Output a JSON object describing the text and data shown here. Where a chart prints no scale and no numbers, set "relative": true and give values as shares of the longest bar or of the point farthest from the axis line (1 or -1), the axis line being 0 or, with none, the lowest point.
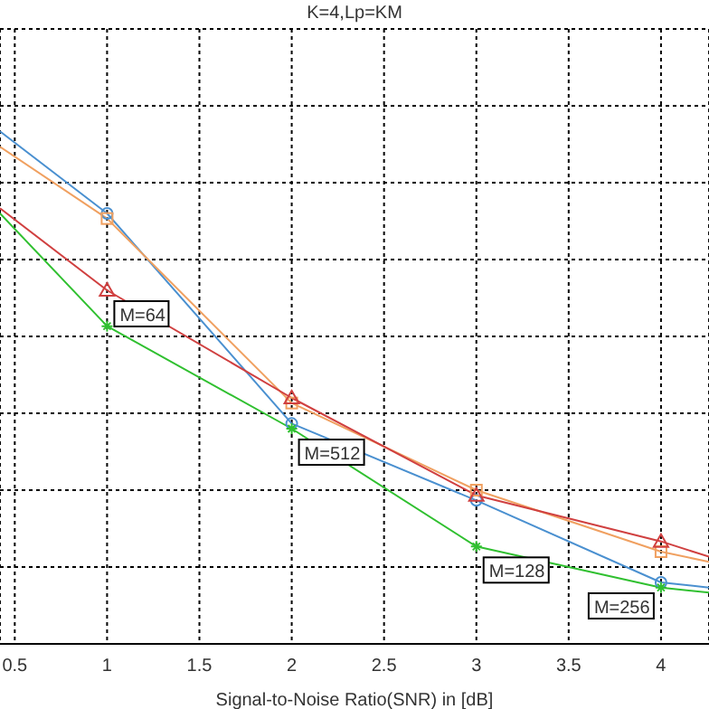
{
  "chart_data": {
    "type": "line",
    "title": "K=4,Lp=KM",
    "xlabel": "Signal-to-Noise Ratio(SNR) in [dB]",
    "relative": true,
    "xlim": [
      0.42,
      4.26
    ],
    "xticks": [
      0.5,
      1,
      1.5,
      2,
      2.5,
      3,
      3.5,
      4
    ],
    "grid": true,
    "line_style": "solid",
    "series": [
      {
        "color": "#4a90d0",
        "marker": "circle",
        "x": [
          0.42,
          1,
          2,
          3,
          4,
          4.26
        ],
        "values": [
          1.0,
          0.84,
          0.43,
          0.28,
          0.12,
          0.11
        ]
      },
      {
        "color": "#f0a060",
        "marker": "square",
        "x": [
          0.42,
          1,
          2,
          3,
          4,
          4.26
        ],
        "values": [
          0.97,
          0.83,
          0.47,
          0.3,
          0.18,
          0.16
        ]
      },
      {
        "color": "#d04040",
        "marker": "triangle",
        "x": [
          0.42,
          1,
          2,
          3,
          4,
          4.26
        ],
        "values": [
          0.85,
          0.69,
          0.48,
          0.29,
          0.2,
          0.17
        ]
      },
      {
        "color": "#30c030",
        "marker": "cross",
        "x": [
          0.42,
          1,
          2,
          3,
          4,
          4.26
        ],
        "values": [
          0.84,
          0.62,
          0.42,
          0.19,
          0.11,
          0.1
        ]
      }
    ],
    "annotations": [
      {
        "text": "M=64",
        "x": 1,
        "y": 0.69
      },
      {
        "text": "M=512",
        "x": 2,
        "y": 0.42
      },
      {
        "text": "M=128",
        "x": 3,
        "y": 0.19
      },
      {
        "text": "M=256",
        "x": 4,
        "y": 0.12
      }
    ]
  }
}
